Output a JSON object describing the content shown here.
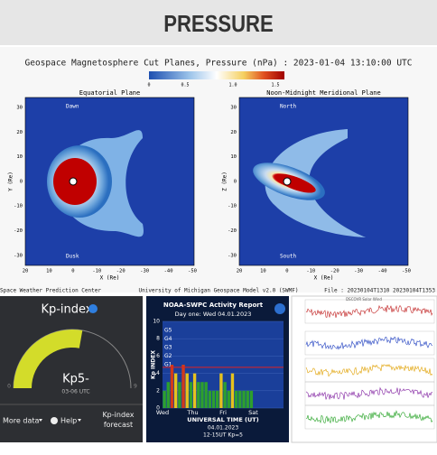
{
  "header": {
    "title": "PRESSURE"
  },
  "pressure_plot": {
    "title": "Geospace Magnetosphere Cut Planes, Pressure (nPa) : 2023-01-04 13:10:00 UTC",
    "colorbar_ticks": [
      "0",
      "0.5",
      "1.0",
      "1.5"
    ],
    "panels": [
      {
        "title": "Equatorial Plane",
        "y_label": "Y (Re)",
        "x_label": "X (Re)",
        "top_label": "Dawn",
        "bottom_label": "Dusk",
        "yticks": [
          "30",
          "20",
          "10",
          "0",
          "-10",
          "-20",
          "-30"
        ],
        "xticks": [
          "20",
          "10",
          "0",
          "-10",
          "-20",
          "-30",
          "-40",
          "-50"
        ]
      },
      {
        "title": "Noon-Midnight Meridional Plane",
        "y_label": "Z (Re)",
        "x_label": "X (Re)",
        "top_label": "North",
        "bottom_label": "South",
        "yticks": [
          "30",
          "20",
          "10",
          "0",
          "-10",
          "-20",
          "-30"
        ],
        "xticks": [
          "20",
          "10",
          "0",
          "-10",
          "-20",
          "-30",
          "-40",
          "-50"
        ]
      }
    ],
    "footer_left": "Space Weather Prediction Center",
    "footer_center": "University of Michigan Geospace Model v2.0 (SWMF)",
    "footer_right": "File : 20230104T1310 20230104T1353"
  },
  "kp_widget": {
    "title": "Kp-index",
    "value": "Kp5-",
    "time": "03-06 UTC",
    "scale_min": "0",
    "scale_max": "9",
    "buttons": [
      "More data",
      "Help",
      "Kp-index forecast"
    ]
  },
  "noaa_chart": {
    "type": "bar",
    "title": "NOAA-SWPC Activity Report",
    "subtitle": "Day one: Wed 04.01.2023",
    "y_label": "Kp INDEX",
    "ylim": [
      0,
      10
    ],
    "yticks": [
      0,
      2,
      4,
      6,
      8,
      10
    ],
    "storm_levels": [
      "G5",
      "G4",
      "G3",
      "G2",
      "G1"
    ],
    "x_labels": [
      "Wed",
      "Thu",
      "Fri",
      "Sat"
    ],
    "x_label": "UNIVERSAL TIME (UT)",
    "date": "04.01.2023",
    "note": "12-15UT Kp=5",
    "values": [
      2,
      3,
      5,
      4,
      3,
      5,
      4,
      3,
      4,
      3,
      3,
      3,
      2,
      2,
      2,
      4,
      3,
      2,
      4,
      2,
      2,
      2,
      2,
      2
    ]
  },
  "solar_wind": {
    "title": "DSCOVR Solar Wind"
  }
}
